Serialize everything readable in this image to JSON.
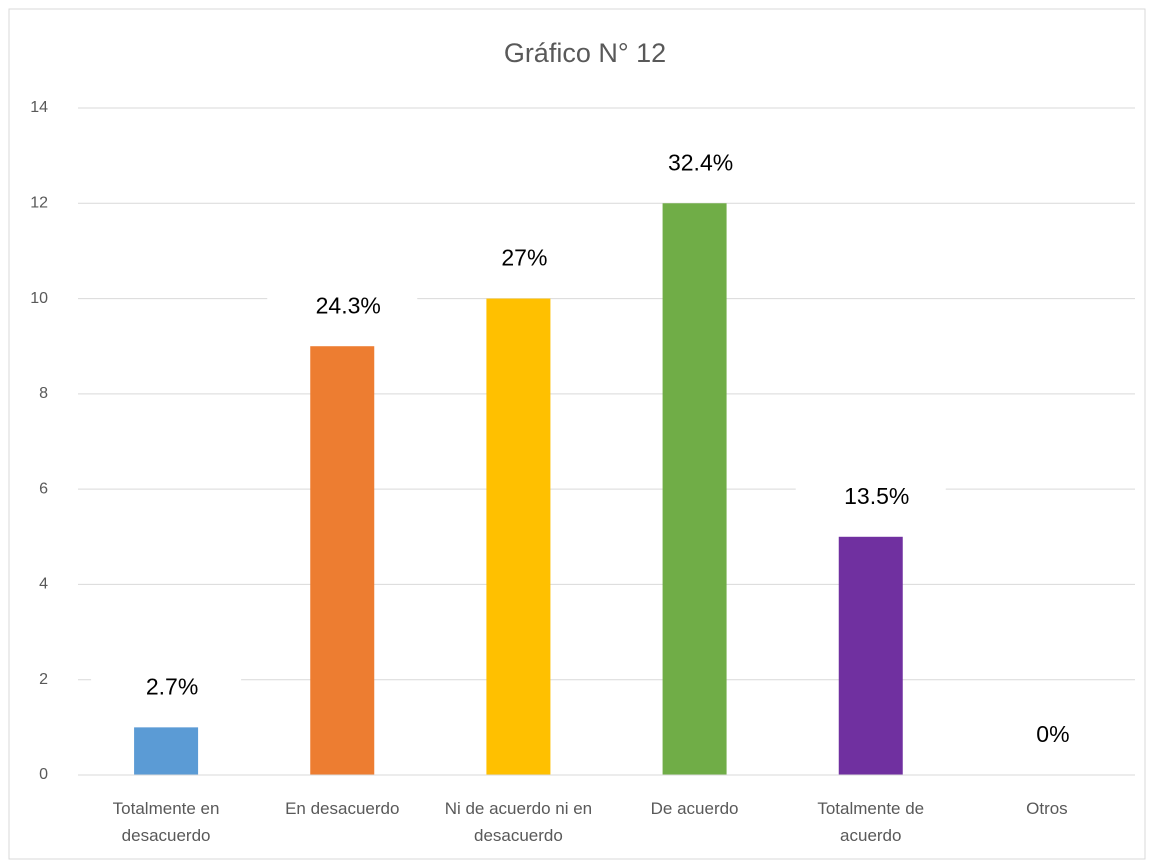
{
  "chart_data": {
    "type": "bar",
    "title": "Gráfico N° 12",
    "categories": [
      "Totalmente en desacuerdo",
      "En desacuerdo",
      "Ni de acuerdo ni en desacuerdo",
      "De acuerdo",
      "Totalmente de acuerdo",
      "Otros"
    ],
    "values": [
      1,
      9,
      10,
      12,
      5,
      0
    ],
    "value_labels": [
      "2.7%",
      "24.3%",
      "27%",
      "32.4%",
      "13.5%",
      "0%"
    ],
    "colors": [
      "#5b9bd5",
      "#ed7d31",
      "#ffc000",
      "#70ad47",
      "#7030a0",
      "#a5a5a5"
    ],
    "ylim": [
      0,
      14
    ],
    "yticks": [
      0,
      2,
      4,
      6,
      8,
      10,
      12,
      14
    ],
    "grid": true
  }
}
